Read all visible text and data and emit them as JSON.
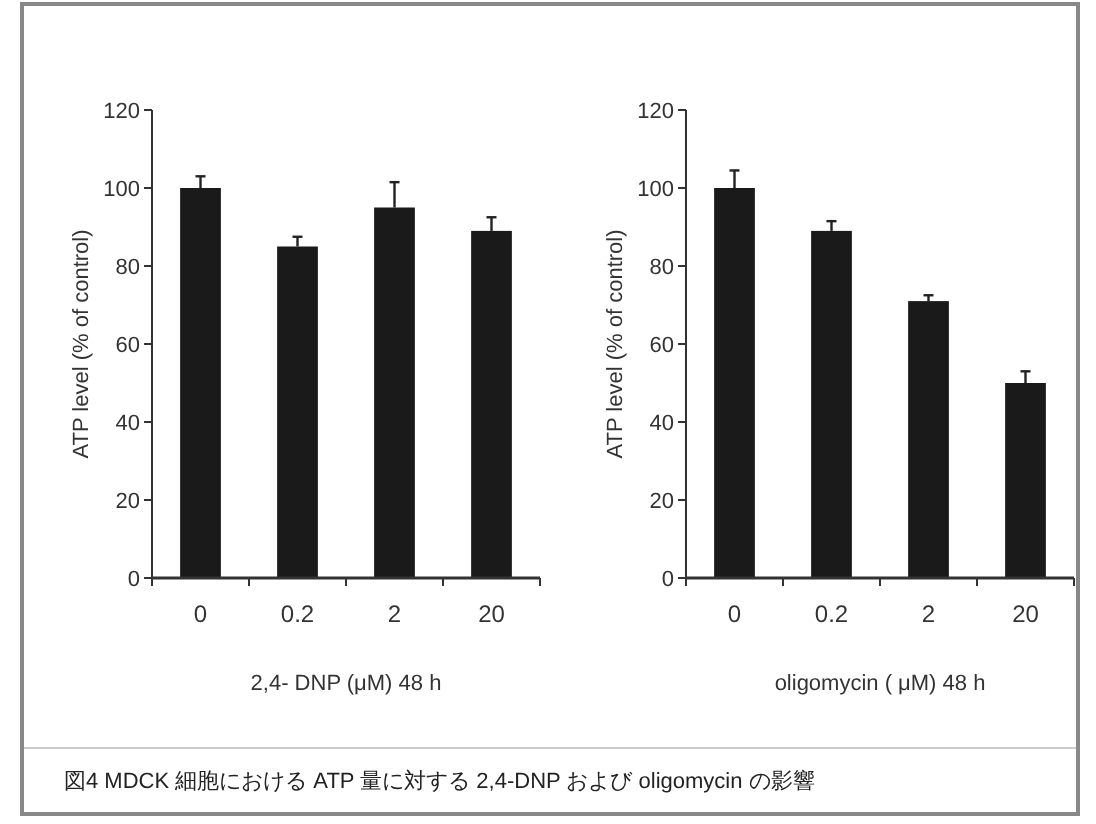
{
  "chart_data": [
    {
      "type": "bar",
      "categories": [
        "0",
        "0.2",
        "2",
        "20"
      ],
      "values": [
        100,
        85,
        95,
        89
      ],
      "errors": [
        3,
        2.5,
        6.5,
        3.5
      ],
      "color": "#1a1a1a",
      "ylim": [
        0,
        120
      ],
      "yticks": [
        0,
        20,
        40,
        60,
        80,
        100,
        120
      ],
      "xlabel": "2,4- DNP (μM) 48 h",
      "ylabel": "ATP level (% of control)",
      "grid": false
    },
    {
      "type": "bar",
      "categories": [
        "0",
        "0.2",
        "2",
        "20"
      ],
      "values": [
        100,
        89,
        71,
        50
      ],
      "errors": [
        4.5,
        2.5,
        1.5,
        3
      ],
      "color": "#1a1a1a",
      "ylim": [
        0,
        120
      ],
      "yticks": [
        0,
        20,
        40,
        60,
        80,
        100,
        120
      ],
      "xlabel": "oligomycin ( μM) 48 h",
      "ylabel": "ATP level (% of control)",
      "grid": false,
      "annotations": [
        "図4  MDCK 細胞における ATP 量に対する 2,4-DNP および oligomycin の影響"
      ]
    }
  ]
}
